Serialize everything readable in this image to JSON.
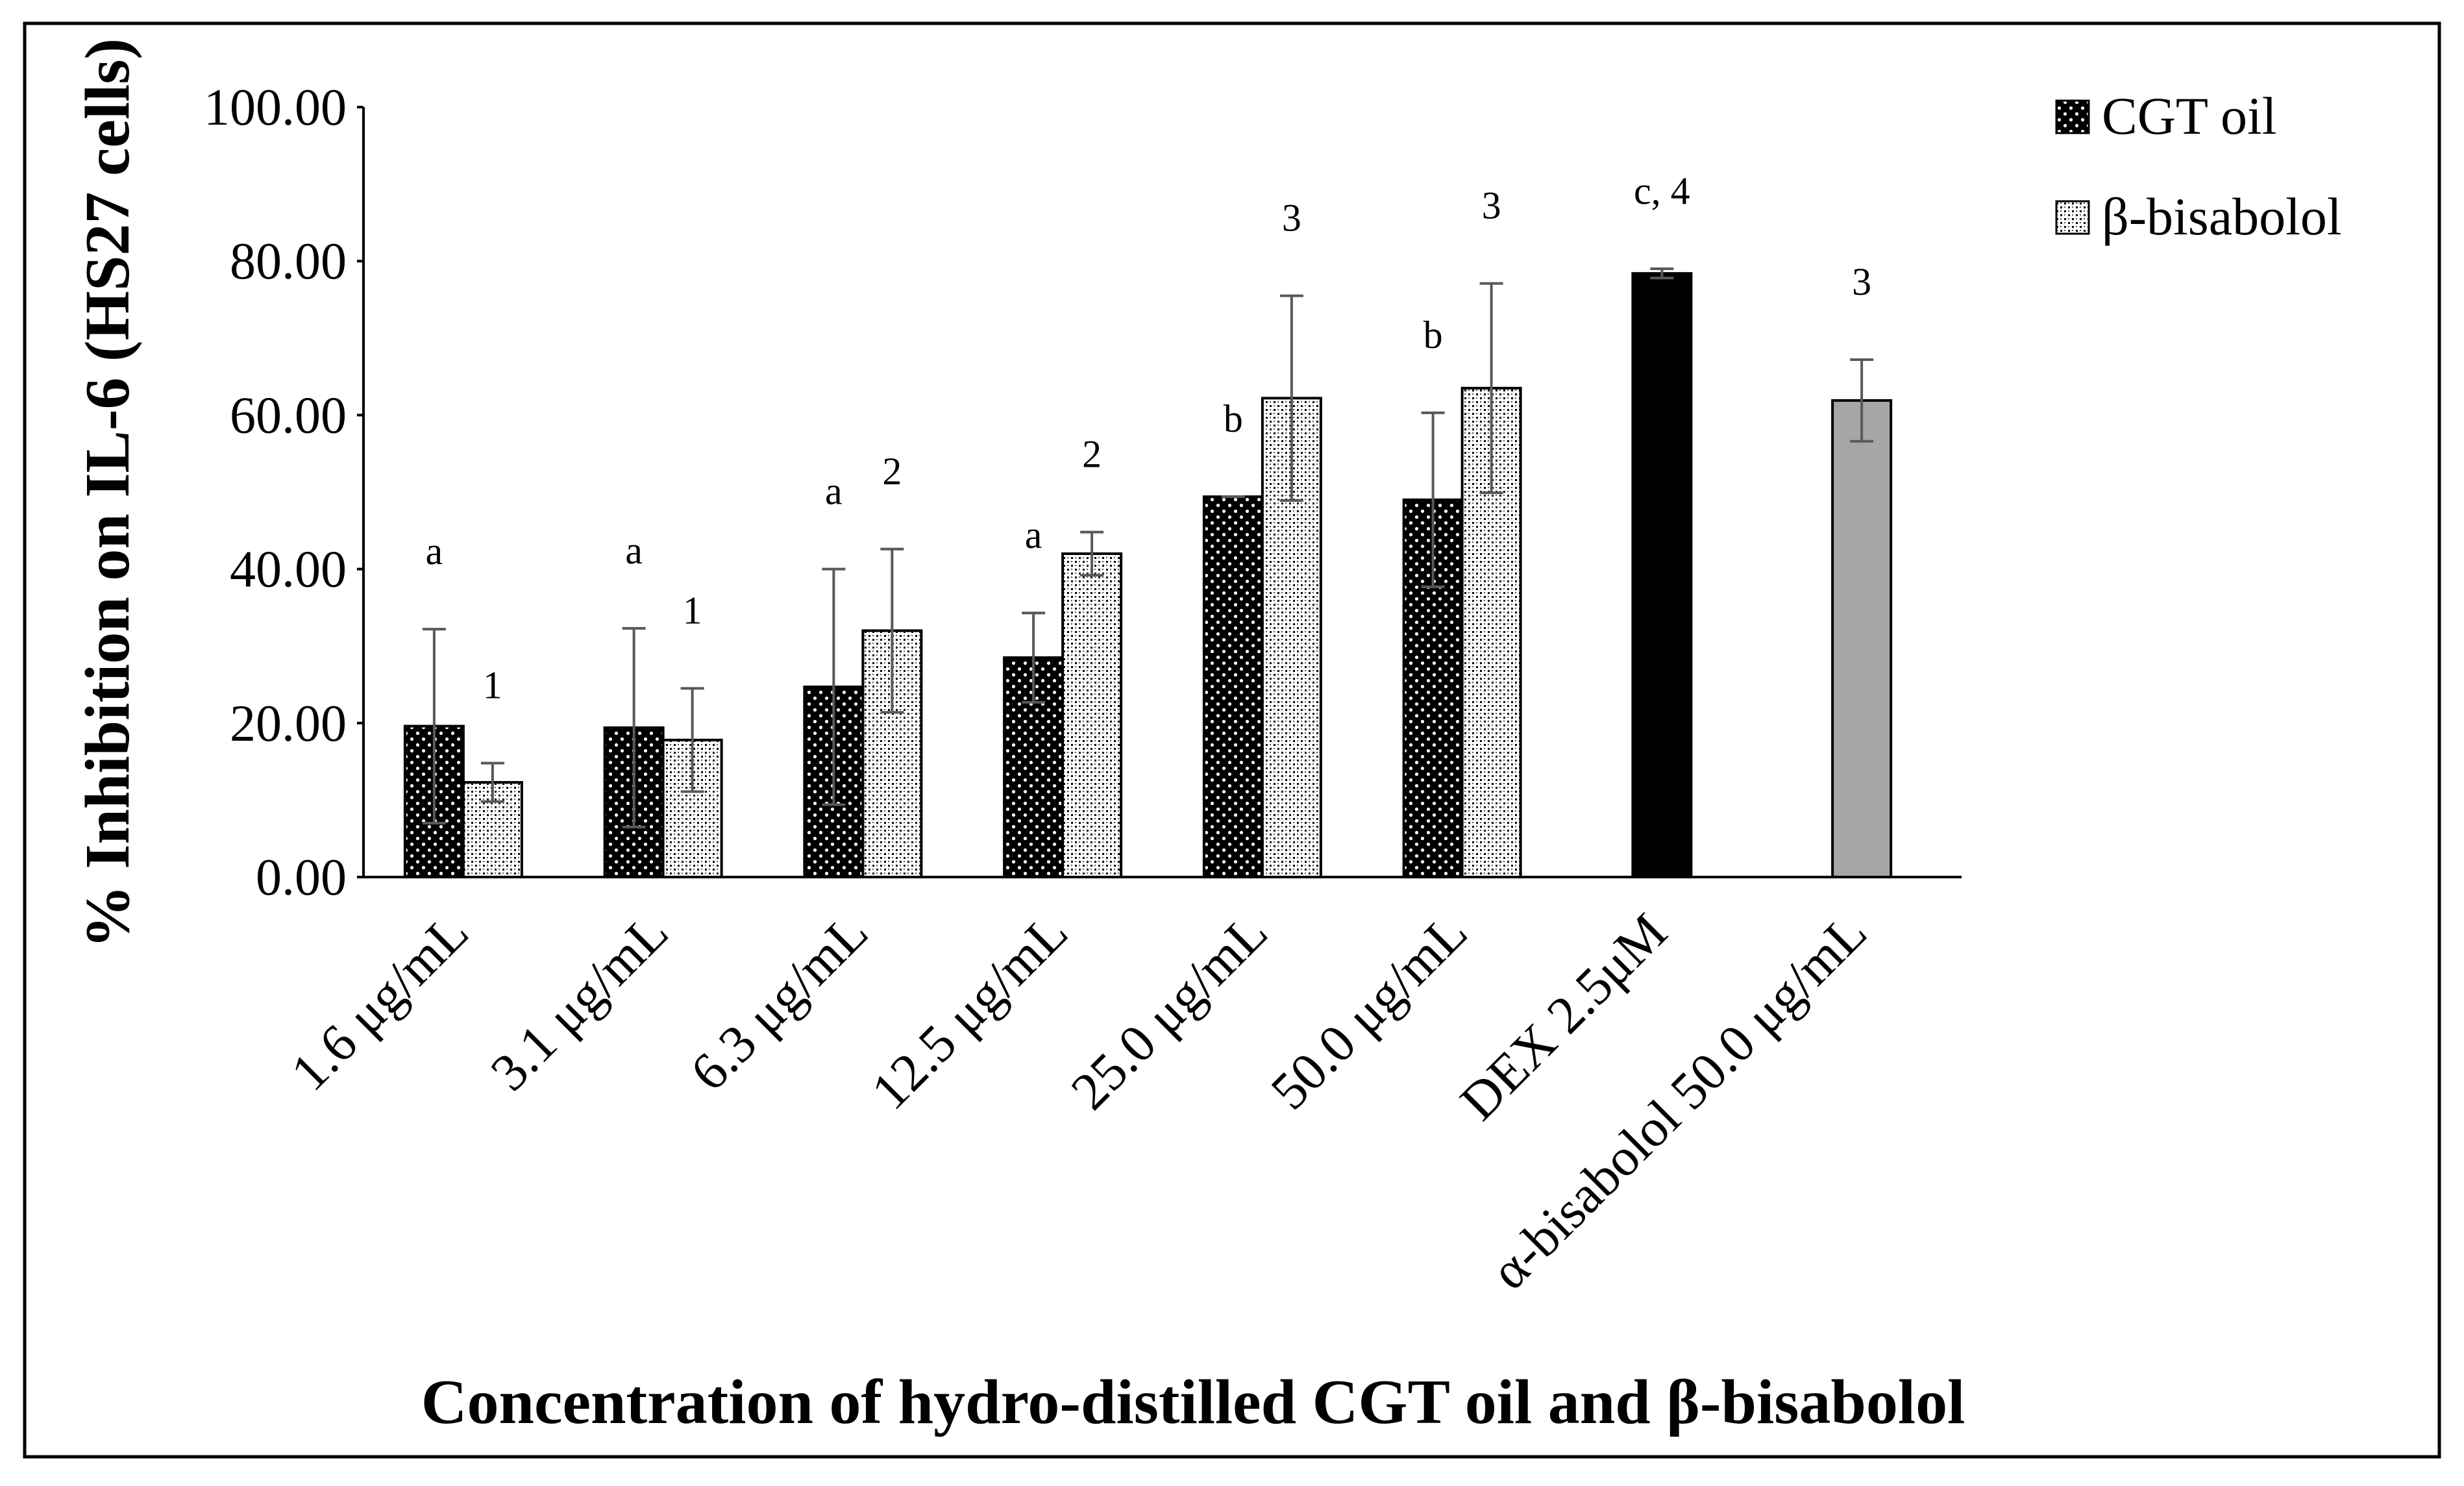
{
  "chart_data": {
    "type": "bar",
    "title": "",
    "xlabel": "Concentration of hydro-distilled CGT oil and β-bisabolol",
    "ylabel": "% Inhibition  on IL-6 (HS27 cells)",
    "ylim": [
      0,
      100
    ],
    "yticks": [
      "0.00",
      "20.00",
      "40.00",
      "60.00",
      "80.00",
      "100.00"
    ],
    "grid": false,
    "legend_position": "top-right",
    "categories": [
      "1.6 μg/mL",
      "3.1 μg/mL",
      "6.3 μg/mL",
      "12.5 μg/mL",
      "25.0 μg/mL",
      "50.0 μg/mL",
      "DEX 2.5μM",
      "α-bisabolol 50.0 μg/mL"
    ],
    "series": [
      {
        "name": "CGT oil",
        "pattern": "dark-dotted",
        "values": [
          19.6,
          19.4,
          24.7,
          28.5,
          49.4,
          49.0,
          null,
          null
        ],
        "errors": [
          12.6,
          12.9,
          15.3,
          5.8,
          0,
          11.3,
          null,
          null
        ],
        "sig_labels": [
          "a",
          "a",
          "a",
          "a",
          "b",
          "b",
          null,
          null
        ]
      },
      {
        "name": "β-bisabolol",
        "pattern": "light-checked",
        "values": [
          12.3,
          17.8,
          32.0,
          42.0,
          62.2,
          63.5,
          null,
          null
        ],
        "errors": [
          2.5,
          6.7,
          10.6,
          2.8,
          13.3,
          13.6,
          null,
          null
        ],
        "sig_labels": [
          "1",
          "1",
          "2",
          "2",
          "3",
          "3",
          null,
          null
        ]
      },
      {
        "name": "DEX 2.5μM",
        "pattern": "solid-black",
        "values": [
          null,
          null,
          null,
          null,
          null,
          null,
          78.4,
          null
        ],
        "errors": [
          null,
          null,
          null,
          null,
          null,
          null,
          0.6,
          null
        ],
        "sig_labels": [
          null,
          null,
          null,
          null,
          null,
          null,
          "c, 4",
          null
        ]
      },
      {
        "name": "α-bisabolol 50.0 μg/mL",
        "pattern": "solid-gray",
        "values": [
          null,
          null,
          null,
          null,
          null,
          null,
          null,
          61.9
        ],
        "errors": [
          null,
          null,
          null,
          null,
          null,
          null,
          null,
          5.3
        ],
        "sig_labels": [
          null,
          null,
          null,
          null,
          null,
          null,
          null,
          "3"
        ]
      }
    ],
    "legend": [
      {
        "label": "CGT oil",
        "pattern": "dark-dotted"
      },
      {
        "label": "β-bisabolol",
        "pattern": "light-checked"
      }
    ],
    "colors": {
      "dark": "#000000",
      "light": "#ffffff",
      "gray": "#a6a6a6",
      "error": "#595959"
    }
  }
}
